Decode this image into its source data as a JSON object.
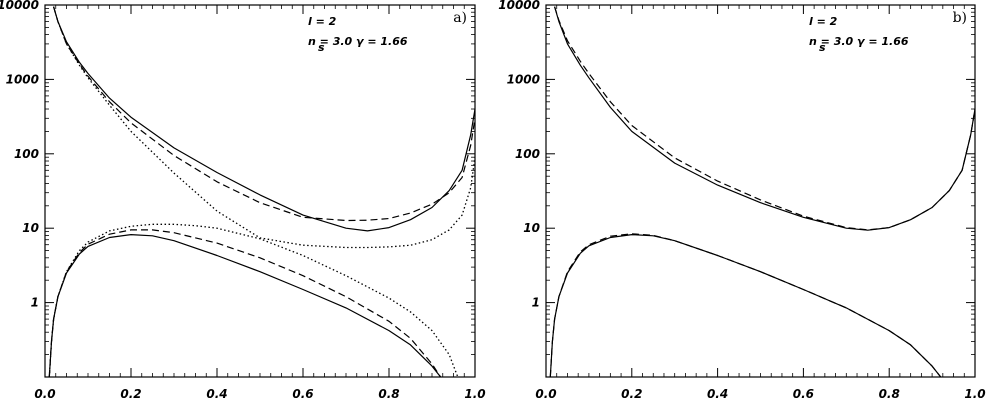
{
  "chart_data": [
    {
      "type": "line",
      "panel_label": "a)",
      "annotations": [
        "l = 2",
        "n = 3.0  γ = 1.66"
      ],
      "n_subscript": "s",
      "xlim": [
        0.0,
        1.0
      ],
      "ylim": [
        0.1,
        10000
      ],
      "yscale": "log",
      "x_ticks": [
        0.0,
        0.2,
        0.4,
        0.6,
        0.8,
        1.0
      ],
      "x_tick_labels": [
        "0.0",
        "0.2",
        "0.4",
        "0.6",
        "0.8",
        "1.0"
      ],
      "y_ticks": [
        1,
        10,
        100,
        1000,
        10000
      ],
      "y_tick_labels": [
        "1",
        "10",
        "100",
        "1000",
        "10000"
      ],
      "grid": false,
      "series": [
        {
          "style": "solid",
          "x": [
            0.02,
            0.03,
            0.05,
            0.08,
            0.1,
            0.15,
            0.2,
            0.3,
            0.4,
            0.5,
            0.6,
            0.7,
            0.75,
            0.8,
            0.85,
            0.9,
            0.94,
            0.97,
            0.99,
            1.0
          ],
          "y": [
            9500,
            6000,
            3200,
            1700,
            1200,
            560,
            310,
            120,
            56,
            28,
            15,
            10,
            9.2,
            10.2,
            13,
            19,
            32,
            60,
            180,
            400
          ]
        },
        {
          "style": "dashed",
          "x": [
            0.02,
            0.03,
            0.05,
            0.08,
            0.1,
            0.15,
            0.2,
            0.3,
            0.4,
            0.5,
            0.6,
            0.7,
            0.75,
            0.8,
            0.85,
            0.9,
            0.94,
            0.97,
            0.99,
            1.0
          ],
          "y": [
            9500,
            6000,
            3000,
            1600,
            1100,
            500,
            260,
            95,
            42,
            22,
            14,
            12.7,
            12.8,
            13.5,
            16,
            21,
            30,
            48,
            130,
            300
          ]
        },
        {
          "style": "dotted",
          "x": [
            0.02,
            0.03,
            0.05,
            0.08,
            0.1,
            0.15,
            0.2,
            0.3,
            0.4,
            0.5,
            0.6,
            0.7,
            0.75,
            0.8,
            0.85,
            0.9,
            0.94,
            0.97,
            0.99,
            1.0
          ],
          "y": [
            9500,
            6000,
            3000,
            1550,
            1050,
            450,
            200,
            55,
            17,
            7.4,
            5.9,
            5.5,
            5.5,
            5.6,
            5.9,
            7,
            9.5,
            15,
            35,
            90
          ]
        },
        {
          "style": "solid",
          "x": [
            0.01,
            0.015,
            0.02,
            0.03,
            0.05,
            0.08,
            0.1,
            0.15,
            0.2,
            0.25,
            0.3,
            0.4,
            0.5,
            0.6,
            0.7,
            0.8,
            0.85,
            0.9,
            0.92
          ],
          "y": [
            0.1,
            0.3,
            0.6,
            1.2,
            2.5,
            4.5,
            5.7,
            7.5,
            8.2,
            7.9,
            6.8,
            4.3,
            2.6,
            1.5,
            0.85,
            0.42,
            0.27,
            0.14,
            0.1
          ]
        },
        {
          "style": "dashed",
          "x": [
            0.01,
            0.015,
            0.02,
            0.03,
            0.05,
            0.08,
            0.1,
            0.15,
            0.2,
            0.25,
            0.3,
            0.4,
            0.5,
            0.6,
            0.7,
            0.8,
            0.85,
            0.9,
            0.92
          ],
          "y": [
            0.1,
            0.3,
            0.6,
            1.2,
            2.6,
            4.7,
            6.1,
            8.3,
            9.5,
            9.5,
            8.7,
            6.3,
            4.0,
            2.3,
            1.2,
            0.56,
            0.33,
            0.15,
            0.1
          ]
        },
        {
          "style": "dotted",
          "x": [
            0.01,
            0.015,
            0.02,
            0.03,
            0.05,
            0.08,
            0.1,
            0.15,
            0.2,
            0.25,
            0.3,
            0.35,
            0.4,
            0.5,
            0.6,
            0.7,
            0.8,
            0.85,
            0.9,
            0.94,
            0.96
          ],
          "y": [
            0.1,
            0.3,
            0.6,
            1.2,
            2.6,
            5.0,
            6.5,
            9.2,
            10.6,
            11.3,
            11.3,
            10.8,
            10.0,
            7.2,
            4.3,
            2.3,
            1.15,
            0.75,
            0.42,
            0.2,
            0.1
          ]
        }
      ]
    },
    {
      "type": "line",
      "panel_label": "b)",
      "annotations": [
        "l = 2",
        "n = 3.0  γ = 1.66"
      ],
      "n_subscript": "s",
      "xlim": [
        0.0,
        1.0
      ],
      "ylim": [
        0.1,
        10000
      ],
      "yscale": "log",
      "x_ticks": [
        0.0,
        0.2,
        0.4,
        0.6,
        0.8,
        1.0
      ],
      "x_tick_labels": [
        "0.0",
        "0.2",
        "0.4",
        "0.6",
        "0.8",
        "1.0"
      ],
      "y_ticks": [
        1,
        10,
        100,
        1000,
        10000
      ],
      "y_tick_labels": [
        "1",
        "10",
        "100",
        "1000",
        "10000"
      ],
      "grid": false,
      "series": [
        {
          "style": "solid",
          "x": [
            0.02,
            0.03,
            0.05,
            0.08,
            0.1,
            0.15,
            0.2,
            0.3,
            0.4,
            0.5,
            0.6,
            0.7,
            0.75,
            0.8,
            0.85,
            0.9,
            0.94,
            0.97,
            0.99,
            1.0
          ],
          "y": [
            9500,
            6000,
            3000,
            1550,
            1050,
            420,
            200,
            75,
            38,
            22,
            14,
            10,
            9.4,
            10.2,
            13,
            19,
            32,
            60,
            180,
            400
          ]
        },
        {
          "style": "dashed",
          "x": [
            0.02,
            0.03,
            0.05,
            0.08,
            0.1,
            0.15,
            0.2,
            0.3,
            0.4,
            0.5,
            0.6,
            0.7,
            0.75,
            0.8,
            0.85,
            0.9,
            0.94,
            0.97,
            0.99,
            1.0
          ],
          "y": [
            9500,
            6200,
            3300,
            1750,
            1200,
            500,
            240,
            88,
            43,
            24,
            14.5,
            10.2,
            9.5,
            10.2,
            13,
            19,
            32,
            60,
            180,
            400
          ]
        },
        {
          "style": "solid",
          "x": [
            0.01,
            0.015,
            0.02,
            0.03,
            0.05,
            0.08,
            0.1,
            0.15,
            0.2,
            0.25,
            0.3,
            0.4,
            0.5,
            0.6,
            0.7,
            0.8,
            0.85,
            0.9,
            0.92
          ],
          "y": [
            0.1,
            0.3,
            0.6,
            1.2,
            2.5,
            4.6,
            5.8,
            7.5,
            8.2,
            7.9,
            6.8,
            4.3,
            2.6,
            1.5,
            0.85,
            0.42,
            0.27,
            0.14,
            0.1
          ]
        },
        {
          "style": "dashed",
          "x": [
            0.01,
            0.015,
            0.02,
            0.03,
            0.05,
            0.08,
            0.1,
            0.15,
            0.2,
            0.25,
            0.3,
            0.4,
            0.5,
            0.6,
            0.7,
            0.8,
            0.85,
            0.9,
            0.92
          ],
          "y": [
            0.1,
            0.3,
            0.6,
            1.2,
            2.6,
            4.8,
            6.0,
            7.8,
            8.4,
            8.0,
            6.8,
            4.3,
            2.6,
            1.5,
            0.85,
            0.42,
            0.27,
            0.14,
            0.1
          ]
        }
      ]
    }
  ]
}
